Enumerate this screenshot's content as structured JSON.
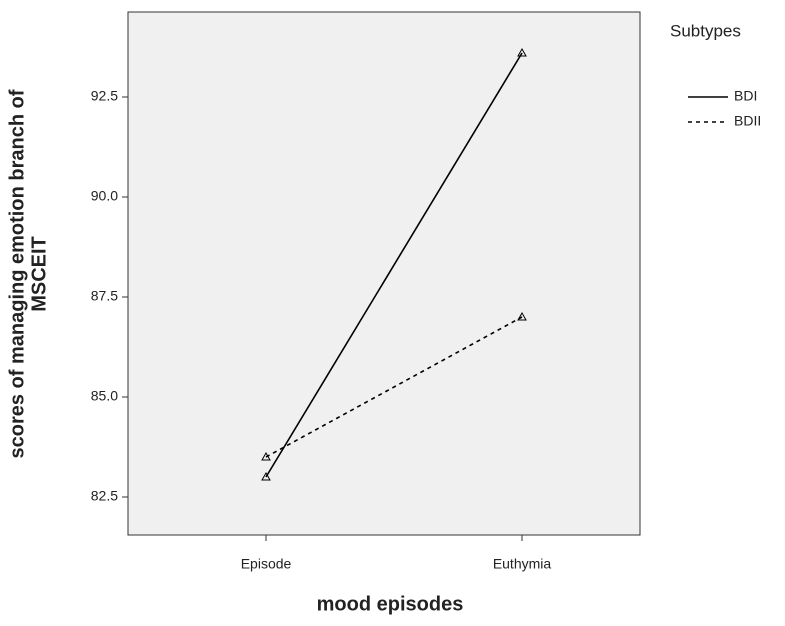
{
  "chart_data": {
    "type": "line",
    "x_label": "mood episodes",
    "y_label": [
      "scores of managing emotion branch of",
      "MSCEIT"
    ],
    "legend_title": "Subtypes",
    "legend_position": "right",
    "categories": [
      "Episode",
      "Euthymia"
    ],
    "series": [
      {
        "name": "BDI",
        "color": "#000000",
        "linestyle": "solid",
        "marker": "triangle",
        "values": [
          83.0,
          93.6
        ]
      },
      {
        "name": "BDII",
        "color": "#000000",
        "linestyle": "dashed",
        "marker": "triangle",
        "values": [
          83.5,
          87.0
        ]
      }
    ],
    "ylim": [
      81.55,
      94.625
    ],
    "yticks": [
      {
        "value": 82.5,
        "label": "82.5"
      },
      {
        "value": 85,
        "label": "85.0"
      },
      {
        "value": 87.5,
        "label": "87.5"
      },
      {
        "value": 90,
        "label": "90.0"
      },
      {
        "value": 92.5,
        "label": "92.5"
      }
    ],
    "grid": false,
    "background": "#f0f0f0"
  }
}
